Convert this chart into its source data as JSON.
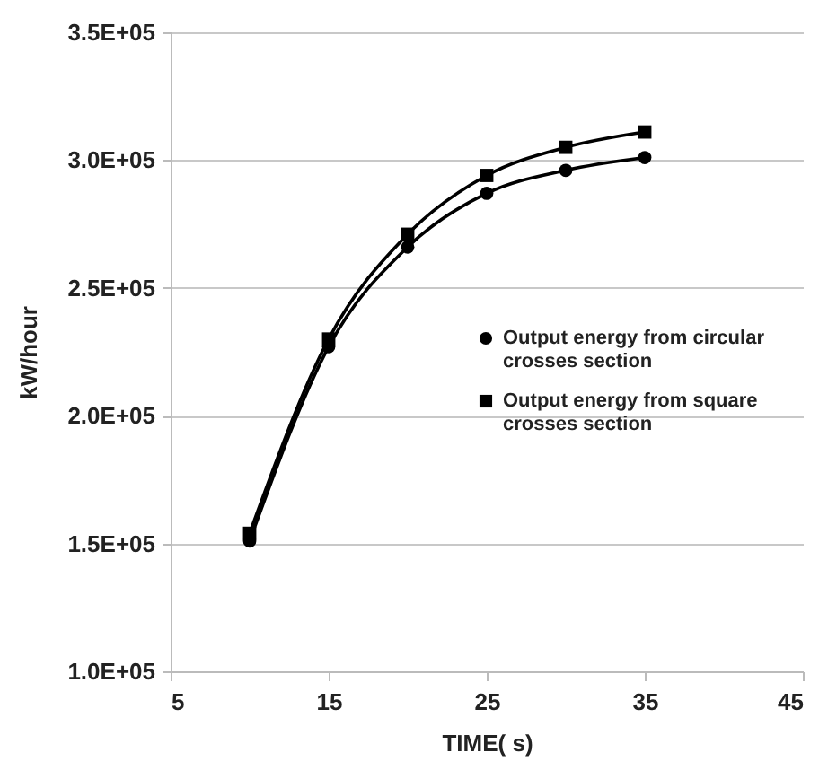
{
  "chart_data": {
    "type": "line",
    "xlabel": "TIME( s)",
    "ylabel": "kW/hour",
    "x": [
      10,
      15,
      20,
      25,
      30,
      35
    ],
    "series": [
      {
        "name": "Output energy from circular crosses section",
        "color": "#000000",
        "marker": "circle",
        "values": [
          151000,
          227000,
          266000,
          287000,
          296000,
          301000
        ]
      },
      {
        "name": "Output energy from square crosses section",
        "color": "#000000",
        "marker": "square",
        "values": [
          154000,
          230000,
          271000,
          294000,
          305000,
          311000
        ]
      }
    ],
    "xlim": [
      5,
      45
    ],
    "xticks": [
      5,
      15,
      25,
      35,
      45
    ],
    "ylim": [
      100000,
      350000
    ],
    "yticks": [
      {
        "value": 100000,
        "label": "1.0E+05"
      },
      {
        "value": 150000,
        "label": "1.5E+05"
      },
      {
        "value": 200000,
        "label": "2.0E+05"
      },
      {
        "value": 250000,
        "label": "2.5E+05"
      },
      {
        "value": 300000,
        "label": "3.0E+05"
      },
      {
        "value": 350000,
        "label": "3.5E+05"
      }
    ],
    "grid": "y",
    "legend": "right",
    "line_style": "solid"
  }
}
